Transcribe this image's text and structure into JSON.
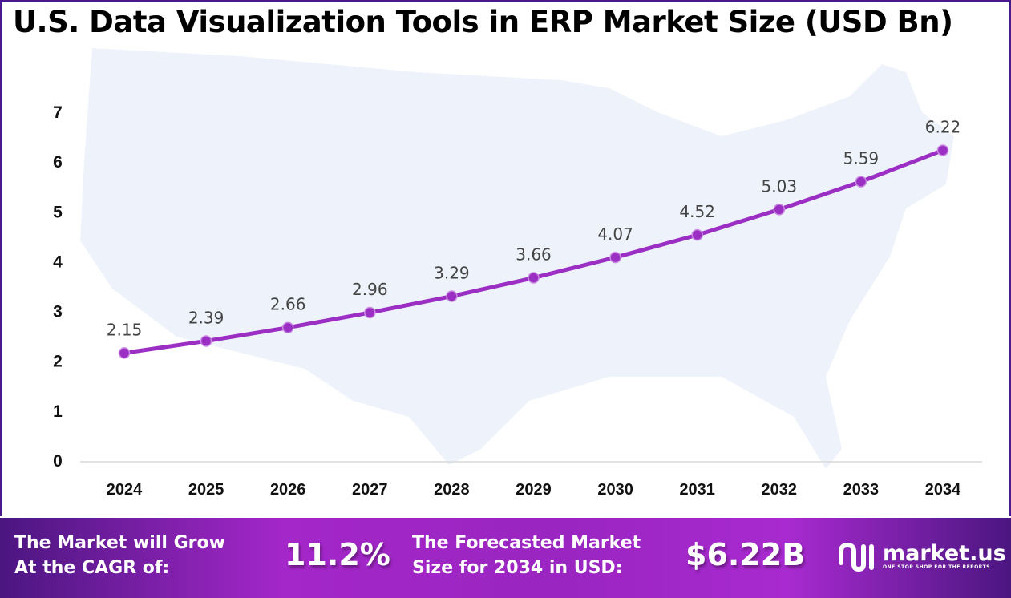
{
  "chart_data": {
    "type": "line",
    "title": "U.S. Data Visualization Tools in ERP Market Size (USD Bn)",
    "categories": [
      "2024",
      "2025",
      "2026",
      "2027",
      "2028",
      "2029",
      "2030",
      "2031",
      "2032",
      "2033",
      "2034"
    ],
    "values": [
      2.15,
      2.39,
      2.66,
      2.96,
      3.29,
      3.66,
      4.07,
      4.52,
      5.03,
      5.59,
      6.22
    ],
    "data_labels": [
      "2.15",
      "2.39",
      "2.66",
      "2.96",
      "3.29",
      "3.66",
      "4.07",
      "4.52",
      "5.03",
      "5.59",
      "6.22"
    ],
    "yticks": [
      "0",
      "1",
      "2",
      "3",
      "4",
      "5",
      "6",
      "7"
    ],
    "ylim": [
      0,
      7
    ],
    "grid": false,
    "line_color": "#9b2fc4",
    "xlabel": "",
    "ylabel": ""
  },
  "footer": {
    "cagr_label_1": "The Market will Grow",
    "cagr_label_2": "At the CAGR of:",
    "cagr_value": "11.2%",
    "forecast_label_1": "The Forecasted Market",
    "forecast_label_2": "Size for 2034 in USD:",
    "forecast_value": "$6.22B",
    "brand": "market.us",
    "tagline": "ONE STOP SHOP FOR THE REPORTS"
  }
}
